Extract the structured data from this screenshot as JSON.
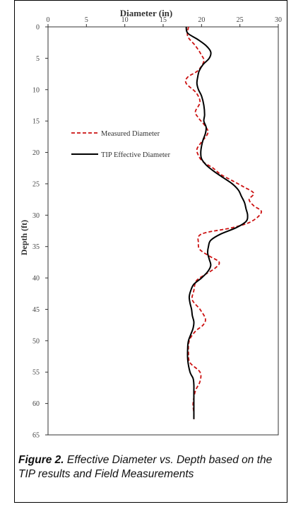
{
  "caption": {
    "lead": "Figure 2.",
    "text": " Effective Diameter vs. Depth based on the TIP results and Field Measurements"
  },
  "chart_data": {
    "type": "line",
    "title": "Diameter (in)",
    "xlabel": "Diameter (in)",
    "ylabel": "Depth (ft)",
    "x_axis_position": "top",
    "y_axis_inverted": true,
    "xlim": [
      0,
      30
    ],
    "ylim": [
      0,
      65
    ],
    "x_ticks": [
      "0",
      "5",
      "10",
      "15",
      "20",
      "25",
      "30"
    ],
    "y_ticks": [
      "0",
      "5",
      "10",
      "15",
      "20",
      "25",
      "30",
      "35",
      "40",
      "45",
      "50",
      "55",
      "60",
      "65"
    ],
    "grid": false,
    "legend_position": "left-upper",
    "series": [
      {
        "name": "Measured Diameter",
        "color": "#cc1111",
        "style": "dashed",
        "points": [
          [
            18.3,
            0
          ],
          [
            18.2,
            1.5
          ],
          [
            19.2,
            3
          ],
          [
            20.0,
            4.5
          ],
          [
            20.3,
            5.5
          ],
          [
            19.5,
            7
          ],
          [
            18.2,
            8
          ],
          [
            18.0,
            9
          ],
          [
            19.3,
            10.5
          ],
          [
            19.8,
            12
          ],
          [
            19.2,
            13.5
          ],
          [
            19.6,
            14.5
          ],
          [
            20.6,
            16
          ],
          [
            20.8,
            17
          ],
          [
            19.9,
            18.5
          ],
          [
            19.4,
            19.5
          ],
          [
            19.6,
            20.5
          ],
          [
            20.2,
            21.5
          ],
          [
            21.5,
            22.5
          ],
          [
            22.5,
            23.5
          ],
          [
            24.0,
            24.5
          ],
          [
            25.5,
            25.5
          ],
          [
            26.8,
            26.5
          ],
          [
            26.2,
            27.5
          ],
          [
            26.8,
            28.5
          ],
          [
            27.8,
            29.5
          ],
          [
            26.5,
            31
          ],
          [
            24.0,
            32
          ],
          [
            20.0,
            33
          ],
          [
            19.6,
            34.5
          ],
          [
            19.8,
            35.5
          ],
          [
            21.0,
            36.5
          ],
          [
            22.3,
            37.5
          ],
          [
            21.7,
            38.5
          ],
          [
            20.4,
            39.5
          ],
          [
            19.3,
            40.5
          ],
          [
            19.0,
            42
          ],
          [
            18.8,
            43.5
          ],
          [
            19.8,
            45
          ],
          [
            20.5,
            46.5
          ],
          [
            20.2,
            47.5
          ],
          [
            19.2,
            48.5
          ],
          [
            18.4,
            50
          ],
          [
            18.3,
            52
          ],
          [
            18.5,
            53.5
          ],
          [
            19.8,
            55
          ],
          [
            19.8,
            56.5
          ],
          [
            19.2,
            58
          ],
          [
            18.9,
            60
          ],
          [
            19.0,
            61.5
          ],
          [
            19.0,
            62.5
          ]
        ]
      },
      {
        "name": "TIP Effective Diameter",
        "color": "#000000",
        "style": "solid",
        "points": [
          [
            18.0,
            0
          ],
          [
            18.2,
            1
          ],
          [
            19.5,
            2
          ],
          [
            20.6,
            3
          ],
          [
            21.2,
            4
          ],
          [
            21.0,
            5
          ],
          [
            20.2,
            6
          ],
          [
            19.7,
            7
          ],
          [
            19.5,
            8
          ],
          [
            19.4,
            9
          ],
          [
            19.6,
            10
          ],
          [
            20.0,
            11
          ],
          [
            20.3,
            12.5
          ],
          [
            20.4,
            14
          ],
          [
            20.3,
            15
          ],
          [
            20.6,
            16
          ],
          [
            20.5,
            17
          ],
          [
            20.2,
            18
          ],
          [
            20.0,
            19
          ],
          [
            19.9,
            20
          ],
          [
            20.0,
            21
          ],
          [
            20.6,
            22
          ],
          [
            21.6,
            23
          ],
          [
            22.8,
            24
          ],
          [
            24.0,
            25
          ],
          [
            24.8,
            26
          ],
          [
            25.2,
            27
          ],
          [
            25.6,
            28
          ],
          [
            25.8,
            29
          ],
          [
            26.0,
            30
          ],
          [
            25.8,
            31
          ],
          [
            24.5,
            32
          ],
          [
            22.5,
            33
          ],
          [
            21.2,
            34
          ],
          [
            20.9,
            35
          ],
          [
            20.8,
            36
          ],
          [
            21.0,
            37
          ],
          [
            21.2,
            38
          ],
          [
            20.8,
            39
          ],
          [
            20.0,
            40
          ],
          [
            19.0,
            41
          ],
          [
            18.6,
            42
          ],
          [
            18.4,
            43
          ],
          [
            18.5,
            44
          ],
          [
            18.7,
            45
          ],
          [
            18.8,
            46
          ],
          [
            19.0,
            47
          ],
          [
            18.9,
            48
          ],
          [
            18.6,
            49
          ],
          [
            18.3,
            50
          ],
          [
            18.2,
            51
          ],
          [
            18.2,
            53
          ],
          [
            18.5,
            55
          ],
          [
            18.9,
            56
          ],
          [
            19.0,
            57
          ],
          [
            19.0,
            58
          ],
          [
            19.0,
            59
          ],
          [
            19.0,
            60
          ],
          [
            19.0,
            61
          ],
          [
            19.0,
            62.5
          ]
        ]
      }
    ]
  }
}
